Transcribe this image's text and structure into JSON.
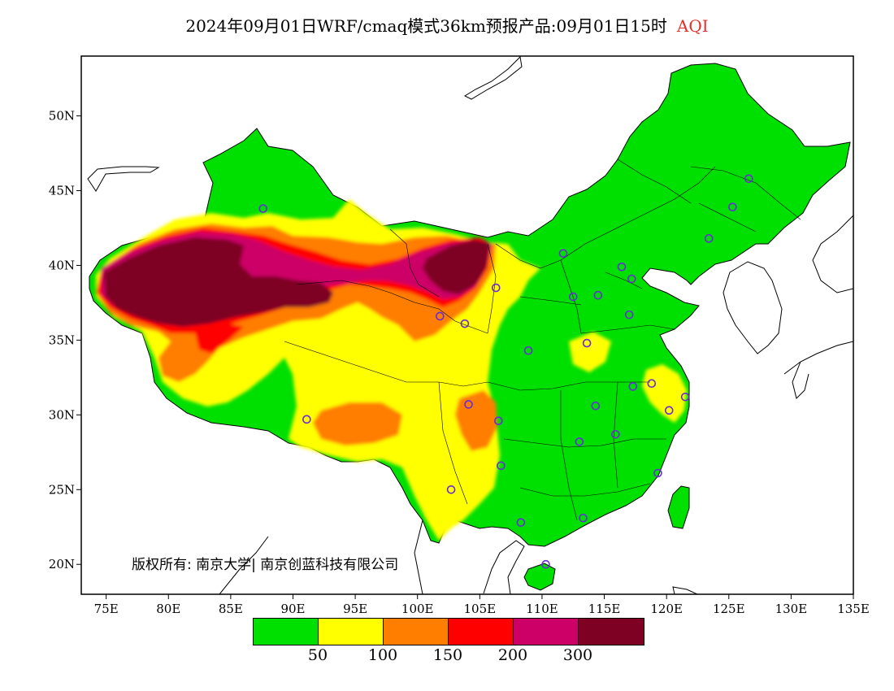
{
  "header": {
    "title": "2024年09月01日WRF/cmaq模式36km预报产品:09月01日15时",
    "variable": "AQI",
    "variable_color": "#e0322b"
  },
  "map": {
    "lon_range": [
      73,
      135
    ],
    "lat_range": [
      18,
      54
    ],
    "x_ticks": [
      "75E",
      "80E",
      "85E",
      "90E",
      "95E",
      "100E",
      "105E",
      "110E",
      "115E",
      "120E",
      "125E",
      "130E",
      "135E"
    ],
    "y_ticks": [
      "50N",
      "45N",
      "40N",
      "35N",
      "30N",
      "25N",
      "20N"
    ]
  },
  "copyright": "版权所有: 南京大学| 南京创蓝科技有限公司",
  "legend": {
    "colors": [
      "#00e000",
      "#ffff00",
      "#ff7e00",
      "#ff0000",
      "#cc0066",
      "#7e0023"
    ],
    "labels": [
      "50",
      "100",
      "150",
      "200",
      "300"
    ]
  },
  "stations": [
    {
      "lon": 87.6,
      "lat": 43.8
    },
    {
      "lon": 126.6,
      "lat": 45.8
    },
    {
      "lon": 125.3,
      "lat": 43.9
    },
    {
      "lon": 123.4,
      "lat": 41.8
    },
    {
      "lon": 111.7,
      "lat": 40.8
    },
    {
      "lon": 116.4,
      "lat": 39.9
    },
    {
      "lon": 117.2,
      "lat": 39.1
    },
    {
      "lon": 106.3,
      "lat": 38.5
    },
    {
      "lon": 114.5,
      "lat": 38.0
    },
    {
      "lon": 112.5,
      "lat": 37.9
    },
    {
      "lon": 117.0,
      "lat": 36.7
    },
    {
      "lon": 101.8,
      "lat": 36.6
    },
    {
      "lon": 103.8,
      "lat": 36.1
    },
    {
      "lon": 113.6,
      "lat": 34.8
    },
    {
      "lon": 108.9,
      "lat": 34.3
    },
    {
      "lon": 118.8,
      "lat": 32.1
    },
    {
      "lon": 117.3,
      "lat": 31.9
    },
    {
      "lon": 121.5,
      "lat": 31.2
    },
    {
      "lon": 104.1,
      "lat": 30.7
    },
    {
      "lon": 114.3,
      "lat": 30.6
    },
    {
      "lon": 120.2,
      "lat": 30.3
    },
    {
      "lon": 91.1,
      "lat": 29.7
    },
    {
      "lon": 106.5,
      "lat": 29.6
    },
    {
      "lon": 115.9,
      "lat": 28.7
    },
    {
      "lon": 113.0,
      "lat": 28.2
    },
    {
      "lon": 106.7,
      "lat": 26.6
    },
    {
      "lon": 119.3,
      "lat": 26.1
    },
    {
      "lon": 102.7,
      "lat": 25.0
    },
    {
      "lon": 113.3,
      "lat": 23.1
    },
    {
      "lon": 108.3,
      "lat": 22.8
    },
    {
      "lon": 110.3,
      "lat": 20.0
    }
  ]
}
